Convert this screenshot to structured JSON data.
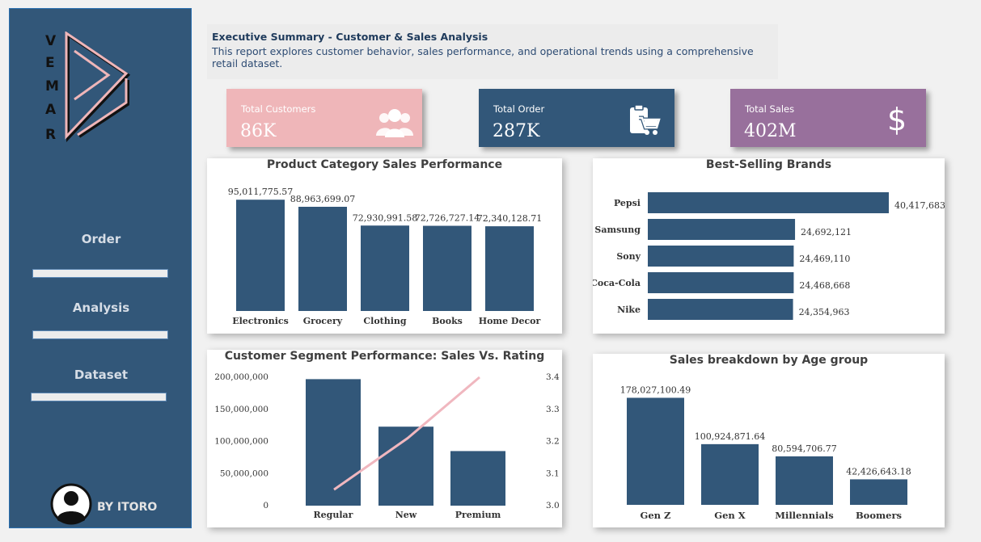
{
  "sidebar": {
    "logo_letters": [
      "V",
      "E",
      "M",
      "A",
      "R"
    ],
    "nav": [
      {
        "label": "Order"
      },
      {
        "label": "Analysis"
      },
      {
        "label": "Dataset"
      }
    ],
    "author": "BY ITORO"
  },
  "header": {
    "title": "Executive Summary - Customer & Sales Analysis",
    "description": "This report explores customer behavior, sales performance, and operational trends using a comprehensive retail dataset."
  },
  "kpis": [
    {
      "label": "Total Customers",
      "value": "86K",
      "color": "#efb6b9",
      "icon": "users-icon"
    },
    {
      "label": "Total Order",
      "value": "287K",
      "color": "#325779",
      "icon": "order-cart-icon"
    },
    {
      "label": "Total Sales",
      "value": "402M",
      "color": "#98709c",
      "icon": "dollar-icon"
    }
  ],
  "colors": {
    "bar": "#325779",
    "line": "#f0b7bf",
    "sidebar": "#325779"
  },
  "chart_data": [
    {
      "type": "bar",
      "title": "Product Category Sales Performance",
      "categories": [
        "Electronics",
        "Grocery",
        "Clothing",
        "Books",
        "Home Decor"
      ],
      "values": [
        95011775.57,
        88963699.07,
        72930991.58,
        72726727.14,
        72340128.71
      ],
      "labels": [
        "95,011,775.57",
        "88,963,699.07",
        "72,930,991.58",
        "72,726,727.14",
        "72,340,128.71"
      ],
      "ylim": [
        0,
        100000000
      ]
    },
    {
      "type": "bar",
      "orientation": "horizontal",
      "title": "Best-Selling Brands",
      "categories": [
        "Pepsi",
        "Samsung",
        "Sony",
        "Coca-Cola",
        "Nike"
      ],
      "values": [
        40417683,
        24692121,
        24469110,
        24468668,
        24354963
      ],
      "labels": [
        "40,417,683",
        "24,692,121",
        "24,469,110",
        "24,468,668",
        "24,354,963"
      ]
    },
    {
      "type": "bar",
      "title": "Customer Segment Performance: Sales Vs. Rating",
      "categories": [
        "Regular",
        "New",
        "Premium"
      ],
      "series": [
        {
          "name": "Sales",
          "type": "bar",
          "values": [
            197000000,
            123000000,
            85000000
          ]
        },
        {
          "name": "Rating",
          "type": "line",
          "axis": "right",
          "values": [
            3.05,
            3.21,
            3.4
          ]
        }
      ],
      "left_ticks": [
        "200,000,000",
        "150,000,000",
        "100,000,000",
        "50,000,000",
        "0"
      ],
      "right_ticks": [
        "3.4",
        "3.3",
        "3.2",
        "3.1",
        "3.0"
      ],
      "ylim": [
        0,
        200000000
      ],
      "y2lim": [
        3.0,
        3.4
      ]
    },
    {
      "type": "bar",
      "title": "Sales breakdown by Age group",
      "categories": [
        "Gen Z",
        "Gen X",
        "Millennials",
        "Boomers"
      ],
      "values": [
        178027100.49,
        100924871.64,
        80594706.77,
        42426643.18
      ],
      "labels": [
        "178,027,100.49",
        "100,924,871.64",
        "80,594,706.77",
        "42,426,643.18"
      ],
      "ylim": [
        0,
        180000000
      ]
    }
  ]
}
